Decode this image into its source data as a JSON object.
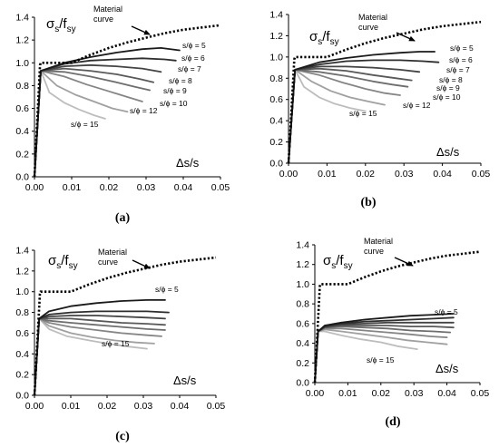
{
  "chart_data": [
    {
      "type": "line",
      "panel_label": "(a)",
      "ylabel_main": "σ",
      "ylabel_sub1": "s",
      "ylabel_mid": "/f",
      "ylabel_sub2": "sy",
      "xlabel": "Δs/s",
      "xlim": [
        0,
        0.05
      ],
      "ylim": [
        0,
        1.4
      ],
      "xticks": [
        "0.00",
        "0.01",
        "0.02",
        "0.03",
        "0.04",
        "0.05"
      ],
      "yticks": [
        "0.0",
        "0.2",
        "0.4",
        "0.6",
        "0.8",
        "1.0",
        "1.2",
        "1.4"
      ],
      "material_curve_label": [
        "Material",
        "curve"
      ],
      "material_curve": {
        "style": "dotted",
        "x": [
          0,
          0.0015,
          0.0017,
          0.01,
          0.015,
          0.02,
          0.025,
          0.03,
          0.035,
          0.04,
          0.045,
          0.05
        ],
        "y": [
          0,
          0.98,
          1.0,
          1.0,
          1.07,
          1.13,
          1.18,
          1.22,
          1.26,
          1.29,
          1.31,
          1.33
        ]
      },
      "series": [
        {
          "name": "s/ϕ = 5",
          "color": "#1a1a1a",
          "x": [
            0,
            0.0017,
            0.008,
            0.015,
            0.022,
            0.029,
            0.034,
            0.039
          ],
          "y": [
            0,
            0.93,
            1.0,
            1.05,
            1.09,
            1.12,
            1.13,
            1.11
          ]
        },
        {
          "name": "s/ϕ = 6",
          "color": "#2e2e2e",
          "x": [
            0,
            0.0017,
            0.008,
            0.015,
            0.022,
            0.029,
            0.035,
            0.038
          ],
          "y": [
            0,
            0.93,
            0.99,
            1.02,
            1.03,
            1.04,
            1.03,
            1.02
          ]
        },
        {
          "name": "s/ϕ = 7",
          "color": "#444444",
          "x": [
            0,
            0.0017,
            0.008,
            0.015,
            0.022,
            0.029,
            0.034
          ],
          "y": [
            0,
            0.93,
            0.97,
            0.98,
            0.97,
            0.95,
            0.92
          ]
        },
        {
          "name": "s/ϕ = 8",
          "color": "#595959",
          "x": [
            0,
            0.0017,
            0.008,
            0.015,
            0.022,
            0.028,
            0.032
          ],
          "y": [
            0,
            0.93,
            0.95,
            0.93,
            0.9,
            0.86,
            0.83
          ]
        },
        {
          "name": "s/ϕ = 9",
          "color": "#6e6e6e",
          "x": [
            0,
            0.0017,
            0.008,
            0.015,
            0.022,
            0.027,
            0.031
          ],
          "y": [
            0,
            0.93,
            0.92,
            0.88,
            0.83,
            0.79,
            0.76
          ]
        },
        {
          "name": "s/ϕ = 10",
          "color": "#858585",
          "x": [
            0,
            0.0017,
            0.008,
            0.014,
            0.02,
            0.025,
            0.029
          ],
          "y": [
            0,
            0.93,
            0.88,
            0.81,
            0.75,
            0.7,
            0.66
          ]
        },
        {
          "name": "s/ϕ = 12",
          "color": "#a0a0a0",
          "x": [
            0,
            0.0017,
            0.006,
            0.011,
            0.016,
            0.021,
            0.025
          ],
          "y": [
            0,
            0.93,
            0.8,
            0.72,
            0.66,
            0.6,
            0.57
          ]
        },
        {
          "name": "s/ϕ = 15",
          "color": "#bdbdbd",
          "x": [
            0,
            0.0017,
            0.004,
            0.008,
            0.012,
            0.016,
            0.019
          ],
          "y": [
            0,
            0.93,
            0.74,
            0.65,
            0.59,
            0.54,
            0.51
          ]
        }
      ],
      "series_labels": [
        "s/ϕ = 5",
        "s/ϕ = 6",
        "s/ϕ = 7",
        "s/ϕ = 8",
        "s/ϕ = 9",
        "s/ϕ = 10",
        "s/ϕ = 12",
        "s/ϕ = 15"
      ]
    },
    {
      "type": "line",
      "panel_label": "(b)",
      "ylabel_main": "σ",
      "ylabel_sub1": "s",
      "ylabel_mid": "/f",
      "ylabel_sub2": "sy",
      "xlabel": "Δs/s",
      "xlim": [
        0,
        0.05
      ],
      "ylim": [
        0,
        1.4
      ],
      "xticks": [
        "0.00",
        "0.01",
        "0.02",
        "0.03",
        "0.04",
        "0.05"
      ],
      "yticks": [
        "0.0",
        "0.2",
        "0.4",
        "0.6",
        "0.8",
        "1.0",
        "1.2",
        "1.4"
      ],
      "material_curve_label": [
        "Material",
        "curve"
      ],
      "material_curve": {
        "style": "dotted",
        "x": [
          0,
          0.0015,
          0.0017,
          0.01,
          0.015,
          0.02,
          0.025,
          0.03,
          0.035,
          0.04,
          0.045,
          0.05
        ],
        "y": [
          0,
          0.98,
          1.0,
          1.0,
          1.07,
          1.13,
          1.18,
          1.22,
          1.26,
          1.29,
          1.31,
          1.33
        ]
      },
      "series": [
        {
          "name": "s/ϕ = 5",
          "color": "#1a1a1a",
          "x": [
            0,
            0.0017,
            0.008,
            0.015,
            0.022,
            0.029,
            0.034,
            0.038
          ],
          "y": [
            0,
            0.88,
            0.95,
            0.99,
            1.02,
            1.04,
            1.05,
            1.05
          ]
        },
        {
          "name": "s/ϕ = 6",
          "color": "#2e2e2e",
          "x": [
            0,
            0.0017,
            0.008,
            0.015,
            0.022,
            0.029,
            0.035,
            0.039
          ],
          "y": [
            0,
            0.88,
            0.93,
            0.96,
            0.97,
            0.97,
            0.96,
            0.95
          ]
        },
        {
          "name": "s/ϕ = 7",
          "color": "#444444",
          "x": [
            0,
            0.0017,
            0.008,
            0.015,
            0.022,
            0.029,
            0.034
          ],
          "y": [
            0,
            0.88,
            0.91,
            0.91,
            0.9,
            0.88,
            0.86
          ]
        },
        {
          "name": "s/ϕ = 8",
          "color": "#595959",
          "x": [
            0,
            0.0017,
            0.008,
            0.015,
            0.022,
            0.028,
            0.032
          ],
          "y": [
            0,
            0.88,
            0.89,
            0.87,
            0.83,
            0.8,
            0.78
          ]
        },
        {
          "name": "s/ϕ = 9",
          "color": "#6e6e6e",
          "x": [
            0,
            0.0017,
            0.008,
            0.015,
            0.022,
            0.027,
            0.031
          ],
          "y": [
            0,
            0.88,
            0.86,
            0.82,
            0.77,
            0.74,
            0.72
          ]
        },
        {
          "name": "s/ϕ = 10",
          "color": "#858585",
          "x": [
            0,
            0.0017,
            0.008,
            0.014,
            0.02,
            0.025,
            0.029
          ],
          "y": [
            0,
            0.88,
            0.83,
            0.76,
            0.7,
            0.66,
            0.64
          ]
        },
        {
          "name": "s/ϕ = 12",
          "color": "#a0a0a0",
          "x": [
            0,
            0.0017,
            0.006,
            0.011,
            0.016,
            0.021,
            0.025
          ],
          "y": [
            0,
            0.88,
            0.77,
            0.68,
            0.62,
            0.58,
            0.55
          ]
        },
        {
          "name": "s/ϕ = 15",
          "color": "#bdbdbd",
          "x": [
            0,
            0.0017,
            0.004,
            0.008,
            0.012,
            0.016,
            0.02
          ],
          "y": [
            0,
            0.88,
            0.72,
            0.62,
            0.56,
            0.52,
            0.49
          ]
        }
      ],
      "series_labels": [
        "s/ϕ = 5",
        "s/ϕ = 6",
        "s/ϕ = 7",
        "s/ϕ = 8",
        "s/ϕ = 9",
        "s/ϕ = 10",
        "s/ϕ = 12",
        "s/ϕ = 15"
      ]
    },
    {
      "type": "line",
      "panel_label": "(c)",
      "ylabel_main": "σ",
      "ylabel_sub1": "s",
      "ylabel_mid": "/f",
      "ylabel_sub2": "sy",
      "xlabel": "Δs/s",
      "xlim": [
        0,
        0.05
      ],
      "ylim": [
        0,
        1.4
      ],
      "xticks": [
        "0.00",
        "0.01",
        "0.02",
        "0.03",
        "0.04",
        "0.05"
      ],
      "yticks": [
        "0.0",
        "0.2",
        "0.4",
        "0.6",
        "0.8",
        "1.0",
        "1.2",
        "1.4"
      ],
      "material_curve_label": [
        "Material",
        "curve"
      ],
      "material_curve": {
        "style": "dotted",
        "x": [
          0,
          0.0015,
          0.0017,
          0.01,
          0.015,
          0.02,
          0.025,
          0.03,
          0.035,
          0.04,
          0.045,
          0.05
        ],
        "y": [
          0,
          0.98,
          1.0,
          1.0,
          1.07,
          1.13,
          1.18,
          1.22,
          1.26,
          1.29,
          1.31,
          1.33
        ]
      },
      "series": [
        {
          "name": "s/ϕ = 5",
          "color": "#1a1a1a",
          "x": [
            0,
            0.0013,
            0.004,
            0.01,
            0.017,
            0.024,
            0.031,
            0.036
          ],
          "y": [
            0,
            0.74,
            0.81,
            0.86,
            0.89,
            0.91,
            0.92,
            0.92
          ]
        },
        {
          "name": "s/ϕ = 6",
          "color": "#2e2e2e",
          "x": [
            0,
            0.0013,
            0.004,
            0.01,
            0.017,
            0.024,
            0.031,
            0.037
          ],
          "y": [
            0,
            0.74,
            0.78,
            0.8,
            0.81,
            0.81,
            0.81,
            0.8
          ]
        },
        {
          "name": "s/ϕ = 7",
          "color": "#444444",
          "x": [
            0,
            0.0013,
            0.004,
            0.01,
            0.017,
            0.024,
            0.031,
            0.036
          ],
          "y": [
            0,
            0.74,
            0.76,
            0.77,
            0.77,
            0.76,
            0.75,
            0.74
          ]
        },
        {
          "name": "s/ϕ = 8",
          "color": "#595959",
          "x": [
            0,
            0.0013,
            0.004,
            0.01,
            0.017,
            0.024,
            0.031,
            0.036
          ],
          "y": [
            0,
            0.74,
            0.74,
            0.74,
            0.72,
            0.7,
            0.69,
            0.68
          ]
        },
        {
          "name": "s/ϕ = 9",
          "color": "#6e6e6e",
          "x": [
            0,
            0.0013,
            0.004,
            0.01,
            0.017,
            0.024,
            0.031,
            0.036
          ],
          "y": [
            0,
            0.74,
            0.72,
            0.7,
            0.68,
            0.66,
            0.64,
            0.63
          ]
        },
        {
          "name": "s/ϕ = 10",
          "color": "#858585",
          "x": [
            0,
            0.0013,
            0.004,
            0.01,
            0.017,
            0.024,
            0.031,
            0.035
          ],
          "y": [
            0,
            0.74,
            0.7,
            0.66,
            0.63,
            0.6,
            0.58,
            0.57
          ]
        },
        {
          "name": "s/ϕ = 12",
          "color": "#a0a0a0",
          "x": [
            0,
            0.0013,
            0.004,
            0.01,
            0.016,
            0.022,
            0.028,
            0.033
          ],
          "y": [
            0,
            0.74,
            0.67,
            0.6,
            0.56,
            0.53,
            0.51,
            0.5
          ]
        },
        {
          "name": "s/ϕ = 15",
          "color": "#bdbdbd",
          "x": [
            0,
            0.0013,
            0.004,
            0.009,
            0.015,
            0.02,
            0.026,
            0.031
          ],
          "y": [
            0,
            0.74,
            0.64,
            0.57,
            0.53,
            0.5,
            0.47,
            0.45
          ]
        }
      ],
      "series_labels": [
        "s/ϕ = 5",
        "s/ϕ = 15"
      ]
    },
    {
      "type": "line",
      "panel_label": "(d)",
      "ylabel_main": "σ",
      "ylabel_sub1": "s",
      "ylabel_mid": "/f",
      "ylabel_sub2": "sy",
      "xlabel": "Δs/s",
      "xlim": [
        0,
        0.05
      ],
      "ylim": [
        0,
        1.4
      ],
      "xticks": [
        "0.00",
        "0.01",
        "0.02",
        "0.03",
        "0.04",
        "0.05"
      ],
      "yticks": [
        "0.0",
        "0.2",
        "0.4",
        "0.6",
        "0.8",
        "1.0",
        "1.2",
        "1.4"
      ],
      "material_curve_label": [
        "Material",
        "curve"
      ],
      "material_curve": {
        "style": "dotted",
        "x": [
          0,
          0.0015,
          0.0017,
          0.01,
          0.015,
          0.02,
          0.025,
          0.03,
          0.035,
          0.04,
          0.045,
          0.05
        ],
        "y": [
          0,
          0.98,
          1.0,
          1.0,
          1.07,
          1.13,
          1.18,
          1.22,
          1.26,
          1.29,
          1.31,
          1.33
        ]
      },
      "series": [
        {
          "name": "s/ϕ = 5",
          "color": "#1a1a1a",
          "x": [
            0,
            0.001,
            0.003,
            0.008,
            0.015,
            0.022,
            0.029,
            0.036,
            0.042
          ],
          "y": [
            0,
            0.52,
            0.58,
            0.61,
            0.64,
            0.66,
            0.68,
            0.69,
            0.7
          ]
        },
        {
          "name": "s/ϕ = 6",
          "color": "#2e2e2e",
          "x": [
            0,
            0.001,
            0.003,
            0.008,
            0.015,
            0.022,
            0.029,
            0.036,
            0.042
          ],
          "y": [
            0,
            0.52,
            0.57,
            0.6,
            0.62,
            0.63,
            0.64,
            0.65,
            0.66
          ]
        },
        {
          "name": "s/ϕ = 7",
          "color": "#444444",
          "x": [
            0,
            0.001,
            0.003,
            0.008,
            0.015,
            0.022,
            0.029,
            0.036,
            0.042
          ],
          "y": [
            0,
            0.52,
            0.57,
            0.59,
            0.6,
            0.61,
            0.61,
            0.61,
            0.61
          ]
        },
        {
          "name": "s/ϕ = 8",
          "color": "#595959",
          "x": [
            0,
            0.001,
            0.003,
            0.008,
            0.015,
            0.022,
            0.029,
            0.036,
            0.042
          ],
          "y": [
            0,
            0.52,
            0.56,
            0.58,
            0.58,
            0.58,
            0.57,
            0.57,
            0.56
          ]
        },
        {
          "name": "s/ϕ = 9",
          "color": "#6e6e6e",
          "x": [
            0,
            0.001,
            0.003,
            0.008,
            0.015,
            0.022,
            0.029,
            0.036,
            0.041
          ],
          "y": [
            0,
            0.52,
            0.56,
            0.57,
            0.56,
            0.55,
            0.53,
            0.52,
            0.51
          ]
        },
        {
          "name": "s/ϕ = 10",
          "color": "#858585",
          "x": [
            0,
            0.001,
            0.003,
            0.008,
            0.015,
            0.022,
            0.029,
            0.035,
            0.04
          ],
          "y": [
            0,
            0.52,
            0.55,
            0.55,
            0.53,
            0.51,
            0.49,
            0.47,
            0.46
          ]
        },
        {
          "name": "s/ϕ = 12",
          "color": "#a0a0a0",
          "x": [
            0,
            0.001,
            0.003,
            0.008,
            0.015,
            0.022,
            0.028,
            0.034,
            0.04
          ],
          "y": [
            0,
            0.52,
            0.54,
            0.52,
            0.49,
            0.46,
            0.43,
            0.41,
            0.39
          ]
        },
        {
          "name": "s/ϕ = 15",
          "color": "#bdbdbd",
          "x": [
            0,
            0.001,
            0.003,
            0.008,
            0.014,
            0.02,
            0.025,
            0.031
          ],
          "y": [
            0,
            0.52,
            0.52,
            0.48,
            0.44,
            0.41,
            0.37,
            0.34
          ]
        }
      ],
      "series_labels": [
        "s/ϕ = 5",
        "s/ϕ = 15"
      ]
    }
  ]
}
